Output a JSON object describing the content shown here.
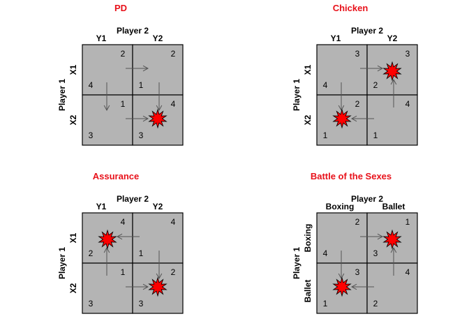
{
  "games": [
    {
      "title": "PD",
      "player_col": "Player 2",
      "player_row": "Player 1",
      "col_strategies": [
        "Y1",
        "Y2"
      ],
      "row_strategies": [
        "X1",
        "X2"
      ],
      "payoffs": [
        [
          "2",
          "4",
          "2",
          "1"
        ],
        [
          "1",
          "3",
          "4",
          "3"
        ]
      ],
      "equilibria": [
        [
          1,
          1
        ]
      ],
      "arrows": [
        {
          "from": [
            0,
            0
          ],
          "to": [
            0,
            1
          ]
        },
        {
          "from": [
            1,
            0
          ],
          "to": [
            1,
            1
          ]
        },
        {
          "from": [
            0,
            0
          ],
          "to": [
            1,
            0
          ]
        },
        {
          "from": [
            0,
            1
          ],
          "to": [
            1,
            1
          ]
        }
      ]
    },
    {
      "title": "Chicken",
      "player_col": "Player 2",
      "player_row": "Player 1",
      "col_strategies": [
        "Y1",
        "Y2"
      ],
      "row_strategies": [
        "X1",
        "X2"
      ],
      "payoffs": [
        [
          "3",
          "4",
          "3",
          "2"
        ],
        [
          "2",
          "1",
          "4",
          "1"
        ]
      ],
      "equilibria": [
        [
          0,
          1
        ],
        [
          1,
          0
        ]
      ],
      "arrows": [
        {
          "from": [
            0,
            0
          ],
          "to": [
            0,
            1
          ]
        },
        {
          "from": [
            1,
            1
          ],
          "to": [
            1,
            0
          ]
        },
        {
          "from": [
            0,
            0
          ],
          "to": [
            1,
            0
          ]
        },
        {
          "from": [
            1,
            1
          ],
          "to": [
            0,
            1
          ]
        }
      ]
    },
    {
      "title": "Assurance",
      "player_col": "Player 2",
      "player_row": "Player 1",
      "col_strategies": [
        "Y1",
        "Y2"
      ],
      "row_strategies": [
        "X1",
        "X2"
      ],
      "payoffs": [
        [
          "4",
          "2",
          "4",
          "1"
        ],
        [
          "1",
          "3",
          "2",
          "3"
        ]
      ],
      "equilibria": [
        [
          0,
          0
        ],
        [
          1,
          1
        ]
      ],
      "arrows": [
        {
          "from": [
            0,
            1
          ],
          "to": [
            0,
            0
          ]
        },
        {
          "from": [
            1,
            0
          ],
          "to": [
            1,
            1
          ]
        },
        {
          "from": [
            1,
            0
          ],
          "to": [
            0,
            0
          ]
        },
        {
          "from": [
            0,
            1
          ],
          "to": [
            1,
            1
          ]
        }
      ]
    },
    {
      "title": "Battle of the Sexes",
      "player_col": "Player 2",
      "player_row": "Player 1",
      "col_strategies": [
        "Boxing",
        "Ballet"
      ],
      "row_strategies": [
        "Boxing",
        "Ballet"
      ],
      "payoffs": [
        [
          "2",
          "4",
          "1",
          "3"
        ],
        [
          "3",
          "1",
          "4",
          "2"
        ]
      ],
      "equilibria": [
        [
          0,
          1
        ],
        [
          1,
          0
        ]
      ],
      "arrows": [
        {
          "from": [
            0,
            0
          ],
          "to": [
            0,
            1
          ]
        },
        {
          "from": [
            1,
            1
          ],
          "to": [
            1,
            0
          ]
        },
        {
          "from": [
            0,
            0
          ],
          "to": [
            1,
            0
          ]
        },
        {
          "from": [
            1,
            1
          ],
          "to": [
            0,
            1
          ]
        }
      ]
    }
  ]
}
